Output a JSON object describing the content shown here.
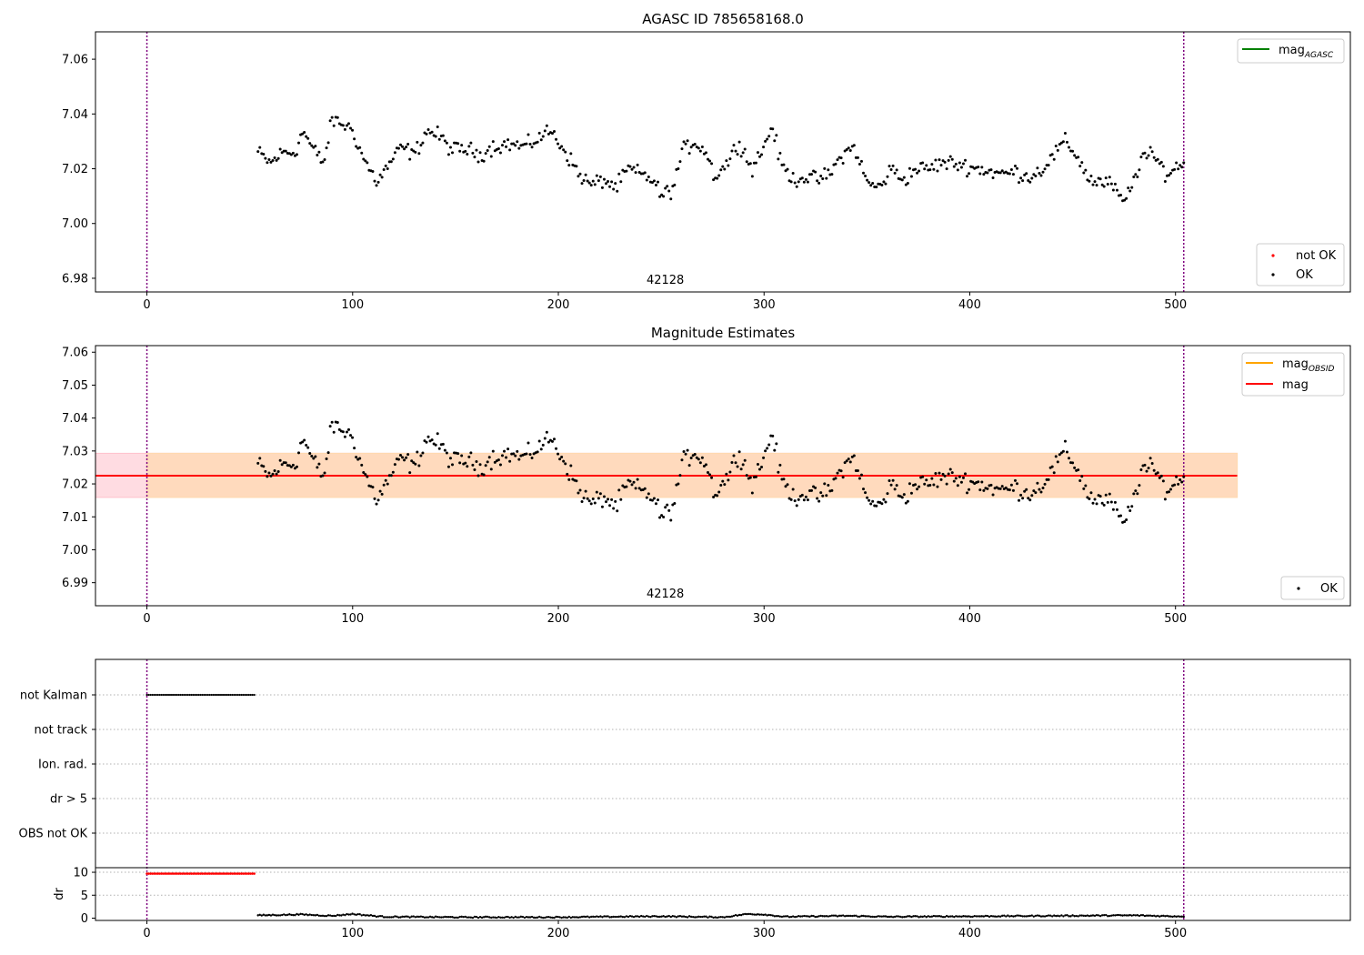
{
  "figure": {
    "background": "#ffffff"
  },
  "chart_data": [
    {
      "type": "scatter",
      "title": "AGASC ID 785658168.0",
      "xlim": [
        -25,
        585
      ],
      "ylim": [
        6.975,
        7.07
      ],
      "xticks": [
        0,
        100,
        200,
        300,
        400,
        500
      ],
      "yticks": [
        6.98,
        7.0,
        7.02,
        7.04,
        7.06
      ],
      "ytick_labels": [
        "6.98",
        "7.00",
        "7.02",
        "7.04",
        "7.06"
      ],
      "obsid_label": "42128",
      "obsid_label_x": 252,
      "vlines_x": [
        0,
        504
      ],
      "vline_color": "#800080",
      "series": [
        {
          "name": "mag_AGASC",
          "legend_main": "mag",
          "legend_sub": "AGASC",
          "color": "#008000",
          "kind": "line"
        },
        {
          "name": "not OK",
          "color": "#ff0000",
          "kind": "points",
          "values": []
        },
        {
          "name": "OK",
          "color": "#000000",
          "kind": "points",
          "x_start": 54,
          "x_end": 504,
          "step": 0.9,
          "anchors": [
            [
              54,
              7.026
            ],
            [
              60,
              7.022
            ],
            [
              66,
              7.026
            ],
            [
              72,
              7.026
            ],
            [
              76,
              7.034
            ],
            [
              80,
              7.028
            ],
            [
              86,
              7.022
            ],
            [
              90,
              7.038
            ],
            [
              96,
              7.036
            ],
            [
              100,
              7.034
            ],
            [
              104,
              7.026
            ],
            [
              108,
              7.02
            ],
            [
              112,
              7.015
            ],
            [
              118,
              7.022
            ],
            [
              124,
              7.028
            ],
            [
              130,
              7.025
            ],
            [
              136,
              7.034
            ],
            [
              142,
              7.032
            ],
            [
              148,
              7.027
            ],
            [
              156,
              7.027
            ],
            [
              162,
              7.025
            ],
            [
              168,
              7.028
            ],
            [
              176,
              7.029
            ],
            [
              184,
              7.028
            ],
            [
              190,
              7.031
            ],
            [
              196,
              7.034
            ],
            [
              202,
              7.028
            ],
            [
              210,
              7.018
            ],
            [
              216,
              7.014
            ],
            [
              222,
              7.016
            ],
            [
              228,
              7.013
            ],
            [
              234,
              7.02
            ],
            [
              240,
              7.018
            ],
            [
              246,
              7.016
            ],
            [
              250,
              7.01
            ],
            [
              256,
              7.013
            ],
            [
              260,
              7.026
            ],
            [
              266,
              7.03
            ],
            [
              272,
              7.026
            ],
            [
              276,
              7.017
            ],
            [
              282,
              7.022
            ],
            [
              288,
              7.03
            ],
            [
              294,
              7.02
            ],
            [
              300,
              7.028
            ],
            [
              304,
              7.036
            ],
            [
              308,
              7.022
            ],
            [
              314,
              7.016
            ],
            [
              320,
              7.017
            ],
            [
              326,
              7.016
            ],
            [
              332,
              7.018
            ],
            [
              338,
              7.025
            ],
            [
              344,
              7.028
            ],
            [
              350,
              7.015
            ],
            [
              356,
              7.013
            ],
            [
              362,
              7.02
            ],
            [
              368,
              7.016
            ],
            [
              374,
              7.02
            ],
            [
              380,
              7.02
            ],
            [
              386,
              7.022
            ],
            [
              392,
              7.022
            ],
            [
              398,
              7.021
            ],
            [
              404,
              7.02
            ],
            [
              410,
              7.019
            ],
            [
              416,
              7.018
            ],
            [
              422,
              7.019
            ],
            [
              428,
              7.017
            ],
            [
              434,
              7.019
            ],
            [
              440,
              7.024
            ],
            [
              446,
              7.03
            ],
            [
              452,
              7.025
            ],
            [
              458,
              7.016
            ],
            [
              464,
              7.015
            ],
            [
              470,
              7.014
            ],
            [
              474,
              7.007
            ],
            [
              478,
              7.012
            ],
            [
              484,
              7.025
            ],
            [
              490,
              7.024
            ],
            [
              496,
              7.018
            ],
            [
              500,
              7.02
            ],
            [
              504,
              7.023
            ]
          ],
          "noise": 0.0028
        }
      ],
      "legend_lines_position": "upper-right",
      "legend_points_position": "lower-right",
      "legend_points_labels": [
        "not OK",
        "OK"
      ]
    },
    {
      "type": "scatter",
      "title": "Magnitude Estimates",
      "xlim": [
        -25,
        585
      ],
      "ylim": [
        6.983,
        7.062
      ],
      "xticks": [
        0,
        100,
        200,
        300,
        400,
        500
      ],
      "yticks": [
        6.99,
        7.0,
        7.01,
        7.02,
        7.03,
        7.04,
        7.05,
        7.06
      ],
      "ytick_labels": [
        "6.99",
        "7.00",
        "7.01",
        "7.02",
        "7.03",
        "7.04",
        "7.05",
        "7.06"
      ],
      "obsid_label": "42128",
      "obsid_label_x": 252,
      "vlines_x": [
        0,
        504
      ],
      "mag_line": {
        "value": 7.0225,
        "x_range": [
          -25,
          530
        ],
        "color": "#ff0000",
        "label": "mag"
      },
      "mag_obsid": {
        "legend_main": "mag",
        "legend_sub": "OBSID",
        "color": "#ffa500"
      },
      "bands": [
        {
          "x_range": [
            -25,
            530
          ],
          "y_range": [
            7.0159,
            7.0293
          ],
          "color": "#ffc0cb"
        },
        {
          "x_range": [
            0,
            530
          ],
          "y_range": [
            7.0159,
            7.0293
          ],
          "color": "#ffdab0"
        }
      ],
      "legend_points_labels": [
        "OK"
      ]
    },
    {
      "type": "scatter",
      "title": "",
      "xlim": [
        -25,
        585
      ],
      "xticks": [
        0,
        100,
        200,
        300,
        400,
        500
      ],
      "flags": [
        "not Kalman",
        "not track",
        "Ion. rad.",
        "dr > 5",
        "OBS not OK"
      ],
      "not_kalman_x_range": [
        0,
        53
      ],
      "vlines_x": [
        0,
        504
      ],
      "dr": {
        "ylabel": "dr",
        "ylim": [
          -0.5,
          11
        ],
        "yticks": [
          0,
          5,
          10
        ],
        "ytick_labels": [
          "0",
          "5",
          "10"
        ],
        "high_value": 9.7,
        "high_x_range": [
          0,
          53
        ],
        "low_x_range": [
          54,
          504
        ],
        "low_anchors": [
          [
            54,
            0.6
          ],
          [
            75,
            0.8
          ],
          [
            90,
            0.5
          ],
          [
            100,
            0.9
          ],
          [
            115,
            0.3
          ],
          [
            150,
            0.2
          ],
          [
            200,
            0.2
          ],
          [
            250,
            0.4
          ],
          [
            280,
            0.2
          ],
          [
            292,
            0.9
          ],
          [
            300,
            0.8
          ],
          [
            310,
            0.3
          ],
          [
            340,
            0.5
          ],
          [
            360,
            0.3
          ],
          [
            400,
            0.4
          ],
          [
            440,
            0.5
          ],
          [
            480,
            0.6
          ],
          [
            500,
            0.4
          ]
        ]
      }
    }
  ]
}
